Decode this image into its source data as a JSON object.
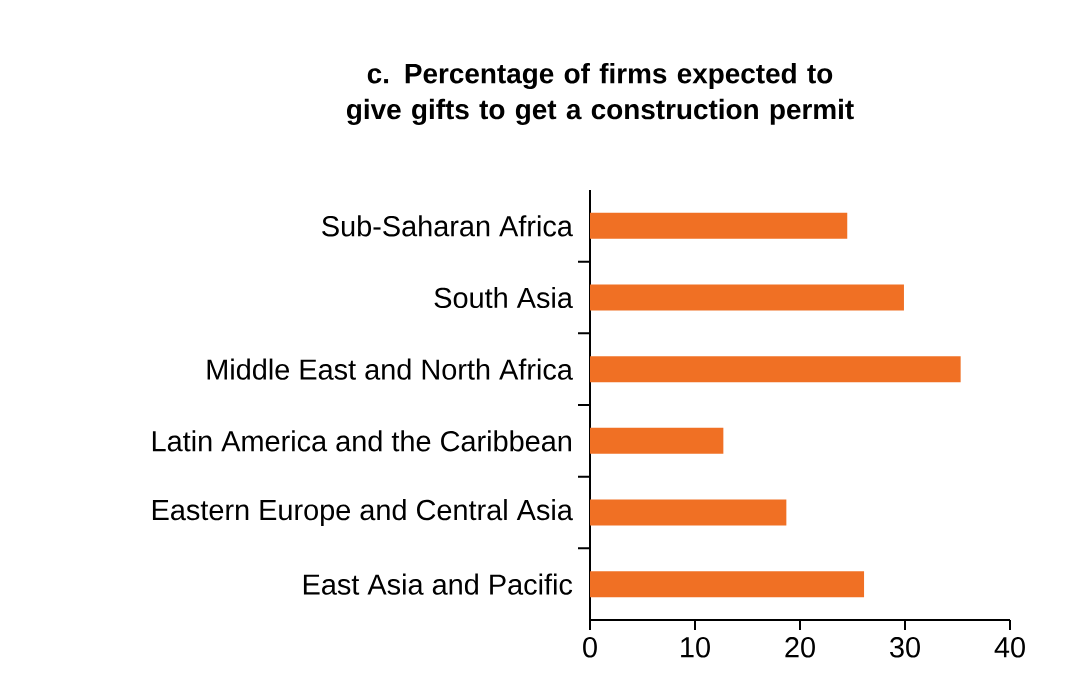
{
  "chart_data": {
    "type": "bar",
    "orientation": "horizontal",
    "title": "c. Percentage of firms expected to give gifts to get a construction permit",
    "categories": [
      "Sub-Saharan Africa",
      "South Asia",
      "Middle East and North Africa",
      "Latin America and the Caribbean",
      "Eastern Europe and Central Asia",
      "East Asia and Pacific"
    ],
    "values": [
      24.5,
      29.9,
      35.3,
      12.7,
      18.7,
      26.1
    ],
    "color": "#f07024",
    "xlim": [
      0,
      40
    ],
    "xticks": [
      0,
      10,
      20,
      30,
      40
    ],
    "grid": false
  }
}
